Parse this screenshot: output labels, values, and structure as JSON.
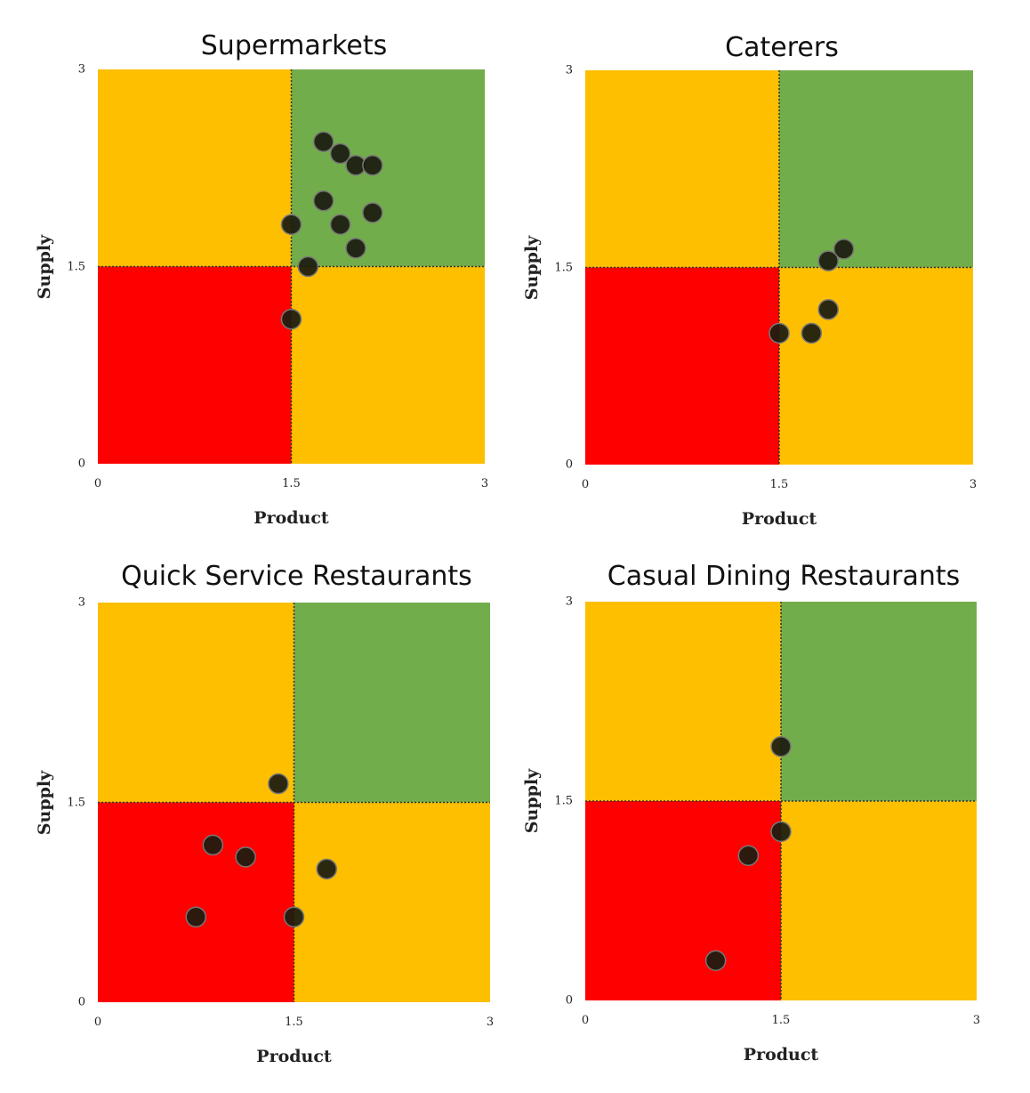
{
  "colors": {
    "top_left": "#fdbf00",
    "top_right": "#72ad4b",
    "bottom_left": "#ff0000",
    "bottom_right": "#fdbf00",
    "point_fill": "#1c1c10",
    "point_stroke": "#777777",
    "divider": "#333333"
  },
  "chart_data": [
    {
      "type": "scatter",
      "title": "Supermarkets",
      "xlabel": "Product",
      "ylabel": "Supply",
      "xlim": [
        0,
        3
      ],
      "ylim": [
        0,
        3
      ],
      "xticks": [
        "0",
        "1.5",
        "3"
      ],
      "yticks": [
        "0",
        "1.5",
        "3"
      ],
      "grid": false,
      "quadrant_split": [
        1.5,
        1.5
      ],
      "points": [
        {
          "x": 1.75,
          "y": 2.45
        },
        {
          "x": 1.88,
          "y": 2.36
        },
        {
          "x": 2.0,
          "y": 2.27
        },
        {
          "x": 2.13,
          "y": 2.27
        },
        {
          "x": 1.75,
          "y": 2.0
        },
        {
          "x": 2.13,
          "y": 1.91
        },
        {
          "x": 1.5,
          "y": 1.82
        },
        {
          "x": 1.88,
          "y": 1.82
        },
        {
          "x": 2.0,
          "y": 1.64
        },
        {
          "x": 1.63,
          "y": 1.5
        },
        {
          "x": 1.5,
          "y": 1.1
        }
      ]
    },
    {
      "type": "scatter",
      "title": "Caterers",
      "xlabel": "Product",
      "ylabel": "Supply",
      "xlim": [
        0,
        3
      ],
      "ylim": [
        0,
        3
      ],
      "xticks": [
        "0",
        "1.5",
        "3"
      ],
      "yticks": [
        "0",
        "1.5",
        "3"
      ],
      "grid": false,
      "quadrant_split": [
        1.5,
        1.5
      ],
      "points": [
        {
          "x": 2.0,
          "y": 1.64
        },
        {
          "x": 1.88,
          "y": 1.55
        },
        {
          "x": 1.88,
          "y": 1.18
        },
        {
          "x": 1.5,
          "y": 1.0
        },
        {
          "x": 1.75,
          "y": 1.0
        }
      ]
    },
    {
      "type": "scatter",
      "title": "Quick Service Restaurants",
      "xlabel": "Product",
      "ylabel": "Supply",
      "xlim": [
        0,
        3
      ],
      "ylim": [
        0,
        3
      ],
      "xticks": [
        "0",
        "1.5",
        "3"
      ],
      "yticks": [
        "0",
        "1.5",
        "3"
      ],
      "grid": false,
      "quadrant_split": [
        1.5,
        1.5
      ],
      "points": [
        {
          "x": 1.38,
          "y": 1.64
        },
        {
          "x": 0.88,
          "y": 1.18
        },
        {
          "x": 1.13,
          "y": 1.09
        },
        {
          "x": 1.75,
          "y": 1.0
        },
        {
          "x": 0.75,
          "y": 0.64
        },
        {
          "x": 1.5,
          "y": 0.64
        }
      ]
    },
    {
      "type": "scatter",
      "title": "Casual Dining Restaurants",
      "xlabel": "Product",
      "ylabel": "Supply",
      "xlim": [
        0,
        3
      ],
      "ylim": [
        0,
        3
      ],
      "xticks": [
        "0",
        "1.5",
        "3"
      ],
      "yticks": [
        "0",
        "1.5",
        "3"
      ],
      "grid": false,
      "quadrant_split": [
        1.5,
        1.5
      ],
      "points": [
        {
          "x": 1.5,
          "y": 1.91
        },
        {
          "x": 1.5,
          "y": 1.27
        },
        {
          "x": 1.25,
          "y": 1.09
        },
        {
          "x": 1.0,
          "y": 0.3
        }
      ]
    }
  ]
}
